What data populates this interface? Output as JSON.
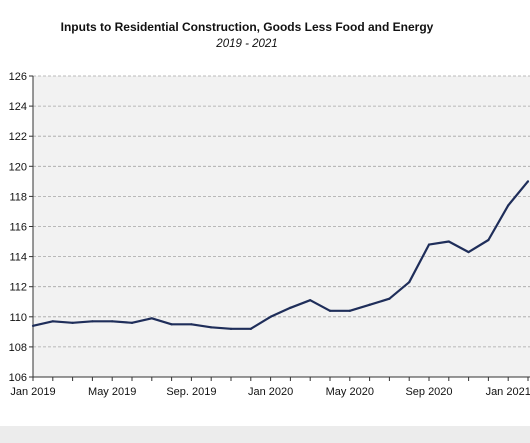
{
  "chart_data": {
    "type": "line",
    "title": "Inputs to Residential Construction, Goods Less Food and Energy",
    "subtitle": "2019 - 2021",
    "xlabel": "",
    "ylabel": "",
    "ylim": [
      106,
      126
    ],
    "yticks": [
      106,
      108,
      110,
      112,
      114,
      116,
      118,
      120,
      122,
      124,
      126
    ],
    "x_tick_labels": [
      "Jan 2019",
      "May 2019",
      "Sep. 2019",
      "Jan 2020",
      "May 2020",
      "Sep 2020",
      "Jan 2021"
    ],
    "x_tick_positions": [
      0,
      4,
      8,
      12,
      16,
      20,
      24
    ],
    "grid": true,
    "line_color": "#1f2e5a",
    "series": [
      {
        "name": "",
        "x": [
          0,
          1,
          2,
          3,
          4,
          5,
          6,
          7,
          8,
          9,
          10,
          11,
          12,
          13,
          14,
          15,
          16,
          17,
          18,
          19,
          20,
          21,
          22,
          23,
          24,
          25
        ],
        "values": [
          109.4,
          109.7,
          109.6,
          109.7,
          109.7,
          109.6,
          109.9,
          109.5,
          109.5,
          109.3,
          109.2,
          109.2,
          110.0,
          110.6,
          111.1,
          110.4,
          110.4,
          110.8,
          111.2,
          112.3,
          114.8,
          115.0,
          114.3,
          115.1,
          117.4,
          119.0
        ]
      }
    ]
  }
}
